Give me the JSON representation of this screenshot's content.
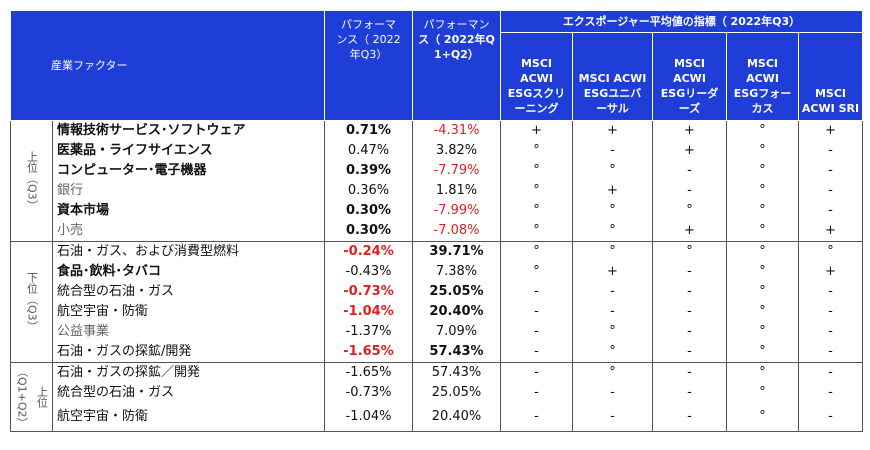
{
  "header": {
    "factor": "産業ファクター",
    "perf_q3_line1": "パフォーマ",
    "perf_q3_line2": "ンス（ 2022",
    "perf_q3_line3": "年Q3）",
    "perf_q1q2_line1": "パフォーマン",
    "perf_q1q2_line2": "ス（ 2022年Q",
    "perf_q1q2_line3": "1+Q2）",
    "exposure_title": "エクスポージャー平均値の指標（ 2022年Q3）",
    "indices": [
      {
        "l1": "MSCI",
        "l2": "ACWI",
        "l3": "ESGスクリ",
        "l4": "ーニング"
      },
      {
        "l1": "",
        "l2": "MSCI ACWI",
        "l3": "ESGユニバ",
        "l4": "ーサル"
      },
      {
        "l1": "MSCI",
        "l2": "ACWI",
        "l3": "ESGリーダ",
        "l4": "ーズ"
      },
      {
        "l1": "MSCI",
        "l2": "ACWI",
        "l3": "ESGフォー",
        "l4": "カス"
      },
      {
        "l1": "",
        "l2": "",
        "l3": "MSCI",
        "l4": "ACWI SRI"
      }
    ]
  },
  "groups": [
    {
      "label": "上位（Q3）"
    },
    {
      "label": "下位（Q3）"
    },
    {
      "label": "上位（Q1+Q2）"
    }
  ],
  "rows": [
    {
      "factor": "情報技術サービス･ソフトウェア",
      "q3": "0.71%",
      "q12": "-4.31%",
      "marks": [
        "+",
        "+",
        "+",
        "°",
        "+"
      ]
    },
    {
      "factor": "医薬品・ライフサイエンス",
      "q3": "0.47%",
      "q12": "3.82%",
      "marks": [
        "°",
        "-",
        "+",
        "°",
        "-"
      ]
    },
    {
      "factor": "コンピューター･電子機器",
      "q3": "0.39%",
      "q12": "-7.79%",
      "marks": [
        "°",
        "°",
        "-",
        "°",
        "-"
      ]
    },
    {
      "factor": "銀行",
      "q3": "0.36%",
      "q12": "1.81%",
      "marks": [
        "°",
        "+",
        "-",
        "°",
        "-"
      ]
    },
    {
      "factor": "資本市場",
      "q3": "0.30%",
      "q12": "-7.99%",
      "marks": [
        "°",
        "°",
        "°",
        "°",
        "-"
      ]
    },
    {
      "factor": "小売",
      "q3": "0.30%",
      "q12": "-7.08%",
      "marks": [
        "°",
        "°",
        "+",
        "°",
        "+"
      ]
    },
    {
      "factor": "石油・ガス、および消費型燃料",
      "q3": "-0.24%",
      "q12": "39.71%",
      "marks": [
        "°",
        "°",
        "°",
        "°",
        "°"
      ]
    },
    {
      "factor": "食品･飲料･タバコ",
      "q3": "-0.43%",
      "q12": "7.38%",
      "marks": [
        "°",
        "+",
        "-",
        "°",
        "+"
      ]
    },
    {
      "factor": "統合型の石油・ガス",
      "q3": "-0.73%",
      "q12": "25.05%",
      "marks": [
        "-",
        "-",
        "-",
        "°",
        "-"
      ]
    },
    {
      "factor": "航空宇宙・防衛",
      "q3": "-1.04%",
      "q12": "20.40%",
      "marks": [
        "-",
        "-",
        "-",
        "°",
        "-"
      ]
    },
    {
      "factor": "公益事業",
      "q3": "-1.37%",
      "q12": "7.09%",
      "marks": [
        "-",
        "°",
        "-",
        "°",
        "-"
      ]
    },
    {
      "factor": "石油・ガスの探鉱/開発",
      "q3": "-1.65%",
      "q12": "57.43%",
      "marks": [
        "-",
        "°",
        "-",
        "°",
        "-"
      ]
    },
    {
      "factor": "石油・ガスの探鉱／開発",
      "q3": "-1.65%",
      "q12": "57.43%",
      "marks": [
        "-",
        "°",
        "-",
        "°",
        "-"
      ]
    },
    {
      "factor": "統合型の石油・ガス",
      "q3": "-0.73%",
      "q12": "25.05%",
      "marks": [
        "-",
        "-",
        "-",
        "°",
        "-"
      ]
    },
    {
      "factor": "航空宇宙・防衛",
      "q3": "-1.04%",
      "q12": "20.40%",
      "marks": [
        "-",
        "-",
        "-",
        "°",
        "-"
      ]
    }
  ]
}
